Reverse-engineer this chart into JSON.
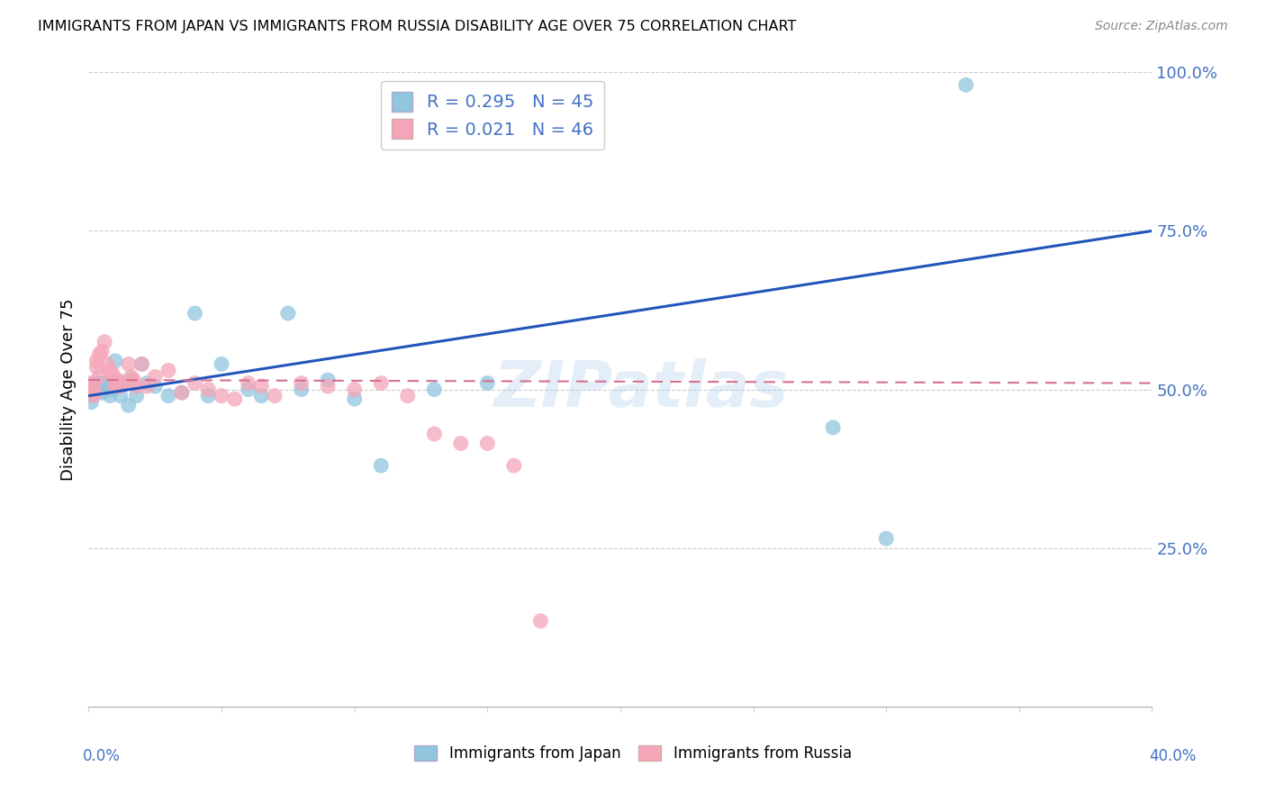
{
  "title": "IMMIGRANTS FROM JAPAN VS IMMIGRANTS FROM RUSSIA DISABILITY AGE OVER 75 CORRELATION CHART",
  "source": "Source: ZipAtlas.com",
  "ylabel": "Disability Age Over 75",
  "xlim": [
    0,
    0.4
  ],
  "ylim": [
    0,
    1.0
  ],
  "color_japan": "#92c5de",
  "color_russia": "#f4a6b8",
  "color_trend_japan": "#2255bb",
  "color_trend_russia": "#d47090",
  "watermark": "ZIPatlas",
  "legend_label_japan": "Immigrants from Japan",
  "legend_label_russia": "Immigrants from Russia",
  "japan_x": [
    0.001,
    0.001,
    0.001,
    0.002,
    0.002,
    0.002,
    0.003,
    0.003,
    0.004,
    0.004,
    0.005,
    0.005,
    0.006,
    0.007,
    0.008,
    0.008,
    0.009,
    0.01,
    0.01,
    0.011,
    0.012,
    0.013,
    0.015,
    0.016,
    0.018,
    0.02,
    0.022,
    0.025,
    0.03,
    0.035,
    0.04,
    0.045,
    0.05,
    0.06,
    0.065,
    0.075,
    0.08,
    0.09,
    0.1,
    0.11,
    0.13,
    0.15,
    0.28,
    0.3,
    0.33
  ],
  "japan_y": [
    0.5,
    0.49,
    0.48,
    0.51,
    0.5,
    0.495,
    0.505,
    0.495,
    0.51,
    0.5,
    0.495,
    0.505,
    0.51,
    0.5,
    0.51,
    0.49,
    0.5,
    0.545,
    0.505,
    0.51,
    0.49,
    0.51,
    0.475,
    0.515,
    0.49,
    0.54,
    0.51,
    0.505,
    0.49,
    0.495,
    0.62,
    0.49,
    0.54,
    0.5,
    0.49,
    0.62,
    0.5,
    0.515,
    0.485,
    0.38,
    0.5,
    0.51,
    0.44,
    0.265,
    0.98
  ],
  "russia_x": [
    0.001,
    0.001,
    0.001,
    0.002,
    0.002,
    0.002,
    0.003,
    0.003,
    0.004,
    0.004,
    0.005,
    0.006,
    0.007,
    0.008,
    0.009,
    0.01,
    0.01,
    0.011,
    0.012,
    0.013,
    0.015,
    0.016,
    0.017,
    0.018,
    0.02,
    0.022,
    0.025,
    0.03,
    0.035,
    0.04,
    0.045,
    0.05,
    0.055,
    0.06,
    0.065,
    0.07,
    0.08,
    0.09,
    0.1,
    0.11,
    0.12,
    0.13,
    0.14,
    0.15,
    0.16,
    0.17
  ],
  "russia_y": [
    0.5,
    0.51,
    0.495,
    0.505,
    0.495,
    0.49,
    0.535,
    0.545,
    0.555,
    0.52,
    0.56,
    0.575,
    0.54,
    0.53,
    0.525,
    0.51,
    0.505,
    0.515,
    0.505,
    0.51,
    0.54,
    0.52,
    0.515,
    0.505,
    0.54,
    0.505,
    0.52,
    0.53,
    0.495,
    0.51,
    0.5,
    0.49,
    0.485,
    0.51,
    0.505,
    0.49,
    0.51,
    0.505,
    0.5,
    0.51,
    0.49,
    0.43,
    0.415,
    0.415,
    0.38,
    0.135
  ],
  "trend_japan_x0": 0.0,
  "trend_japan_y0": 0.49,
  "trend_japan_x1": 0.4,
  "trend_japan_y1": 0.75,
  "trend_russia_x0": 0.0,
  "trend_russia_y0": 0.515,
  "trend_russia_x1": 0.4,
  "trend_russia_y1": 0.51
}
